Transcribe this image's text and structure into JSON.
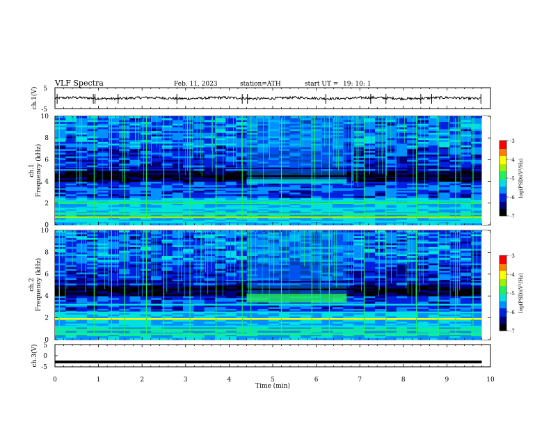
{
  "header": {
    "title": "VLF  Spectra",
    "date": "Feb. 11, 2023",
    "station": "station=ATH",
    "start_label": "start  UT  =",
    "start_time": "19: 10: 1"
  },
  "colors": {
    "colormap": [
      "#000000",
      "#00007a",
      "#0020e0",
      "#0090ff",
      "#00e0e0",
      "#20f060",
      "#a0f000",
      "#ffff00",
      "#ff8000",
      "#ff0000",
      "#ffffff"
    ],
    "trace": "#000000",
    "frame": "#000000"
  },
  "chart_data": [
    {
      "type": "line",
      "id": "ch1-waveform",
      "ylabel": "ch.1(V)",
      "ylim": [
        -5,
        5
      ],
      "y_ticks": [
        "5",
        "-5"
      ],
      "xlim": [
        0,
        10
      ],
      "baseline": 0,
      "amplitude": 0.6,
      "spikes_min": [
        0.05,
        0.88,
        0.92,
        1.45,
        2.8,
        4.3,
        4.42,
        6.22,
        7.25,
        7.6,
        8.4,
        8.65,
        9.78
      ]
    },
    {
      "type": "heatmap",
      "id": "ch1-spectrogram",
      "ylabel": "ch.1\nFrequency (kHz)",
      "y_ticks": [
        "0",
        "2",
        "4",
        "6",
        "8",
        "10"
      ],
      "ylim": [
        0,
        10
      ],
      "xlim": [
        0,
        10
      ],
      "colorbar": {
        "label": "log(PSD)(V²/Hz)",
        "range": [
          -7,
          -3
        ],
        "ticks": [
          "-3",
          "-4",
          "-5",
          "-6",
          "-7"
        ]
      },
      "data_end_min": 9.8,
      "bands_khz": [
        {
          "freq": 0.3,
          "level": -5.2
        },
        {
          "freq": 0.7,
          "level": -4.6
        },
        {
          "freq": 1.0,
          "level": -5.0
        },
        {
          "freq": 1.5,
          "level": -5.1
        },
        {
          "freq": 2.0,
          "level": -4.7
        },
        {
          "freq": 2.2,
          "level": -5.3
        },
        {
          "freq": 3.3,
          "level": -5.8
        },
        {
          "freq": 4.5,
          "level": -6.9
        },
        {
          "freq": 5.2,
          "level": -6.2
        }
      ],
      "event": {
        "t_start": 4.4,
        "t_end": 6.7,
        "f_low": 3.8,
        "f_high": 4.2,
        "level": -5.3
      },
      "vertical_lines_min": [
        0.1,
        0.9,
        1.3,
        1.6,
        2.1,
        2.5,
        3.1,
        3.7,
        4.3,
        4.5,
        5.2,
        5.9,
        6.3,
        7.1,
        7.6,
        8.3,
        8.8,
        9.2,
        9.6
      ]
    },
    {
      "type": "heatmap",
      "id": "ch2-spectrogram",
      "ylabel": "ch.2\nFrequency (kHz)",
      "y_ticks": [
        "0",
        "2",
        "4",
        "6",
        "8",
        "10"
      ],
      "ylim": [
        0,
        10
      ],
      "xlim": [
        0,
        10
      ],
      "colorbar": {
        "label": "log(PSD)(V²/Hz)",
        "range": [
          -7,
          -3
        ],
        "ticks": [
          "-3",
          "-4",
          "-5",
          "-6",
          "-7"
        ]
      },
      "data_end_min": 9.8,
      "bands_khz": [
        {
          "freq": 0.5,
          "level": -4.8
        },
        {
          "freq": 0.9,
          "level": -4.7
        },
        {
          "freq": 1.2,
          "level": -5.2
        },
        {
          "freq": 1.9,
          "level": -4.2
        },
        {
          "freq": 2.5,
          "level": -5.1
        },
        {
          "freq": 3.2,
          "level": -5.3
        },
        {
          "freq": 4.6,
          "level": -6.7
        },
        {
          "freq": 5.3,
          "level": -6.3
        }
      ],
      "event": {
        "t_start": 4.4,
        "t_end": 6.7,
        "f_low": 3.4,
        "f_high": 4.2,
        "level": -5.0
      },
      "vertical_lines_min": [
        0.1,
        0.9,
        1.3,
        1.6,
        2.1,
        2.5,
        3.1,
        3.7,
        4.3,
        4.5,
        5.2,
        5.9,
        6.3,
        7.1,
        7.6,
        8.3,
        8.8,
        9.2,
        9.6
      ]
    },
    {
      "type": "line",
      "id": "ch3-waveform",
      "ylabel": "ch.3(V)",
      "ylim": [
        -5,
        5
      ],
      "y_ticks": [
        "5",
        "0",
        "-5"
      ],
      "xlim": [
        0,
        10
      ],
      "baseline": -2.8,
      "amplitude": 0.15,
      "data_end_min": 9.8
    }
  ],
  "xaxis": {
    "label": "Time  (min)",
    "ticks": [
      "0",
      "1",
      "2",
      "3",
      "4",
      "5",
      "6",
      "7",
      "8",
      "9",
      "10"
    ]
  }
}
